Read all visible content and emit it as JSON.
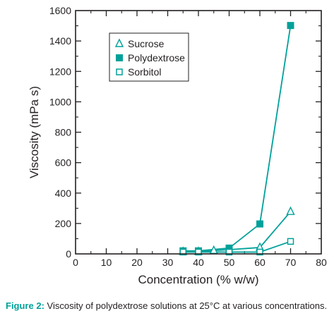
{
  "chart_data": {
    "type": "line",
    "xlabel": "Concentration (% w/w)",
    "ylabel": "Viscosity (mPa s)",
    "xlim": [
      0,
      80
    ],
    "ylim": [
      0,
      1600
    ],
    "xticks": [
      0,
      10,
      20,
      30,
      40,
      50,
      60,
      70,
      80
    ],
    "yticks": [
      0,
      200,
      400,
      600,
      800,
      1000,
      1200,
      1400,
      1600
    ],
    "xtick_labels": [
      "0",
      "10",
      "20",
      "30",
      "40",
      "50",
      "60",
      "70",
      "80"
    ],
    "ytick_labels": [
      "0",
      "200",
      "400",
      "600",
      "800",
      "1000",
      "1200",
      "1400",
      "1600"
    ],
    "grid": false,
    "legend_position": "top-left",
    "series": [
      {
        "name": "Sucrose",
        "marker": "open-triangle",
        "color": "#00a19a",
        "x": [
          35,
          40,
          45,
          50,
          60,
          70
        ],
        "y": [
          15,
          15,
          22,
          28,
          42,
          278
        ]
      },
      {
        "name": "Polydextrose",
        "marker": "filled-square",
        "color": "#00a19a",
        "x": [
          35,
          40,
          50,
          60,
          70
        ],
        "y": [
          20,
          20,
          38,
          197,
          1502
        ]
      },
      {
        "name": "Sorbitol",
        "marker": "open-square",
        "color": "#00a19a",
        "x": [
          35,
          40,
          50,
          60,
          70
        ],
        "y": [
          12,
          12,
          12,
          12,
          82
        ]
      }
    ]
  },
  "caption": {
    "label": "Figure 2:",
    "text": " Viscosity of polydextrose solutions at 25°C at various concentrations."
  }
}
